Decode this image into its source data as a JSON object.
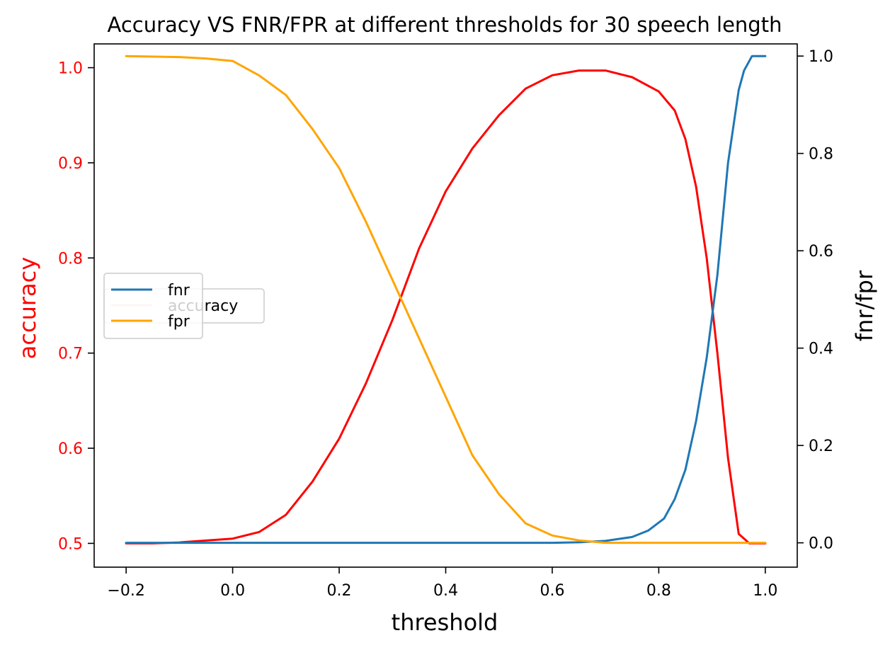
{
  "chart_data": {
    "type": "line",
    "title": "Accuracy VS FNR/FPR at different thresholds for 30 speech length",
    "xlabel": "threshold",
    "ylabel_left": "accuracy",
    "ylabel_right": "fnr/fpr",
    "xlim": [
      -0.26,
      1.06
    ],
    "ylim_left": [
      0.475,
      1.025
    ],
    "ylim_right": [
      -0.05,
      1.025
    ],
    "x_ticks": [
      -0.2,
      0.0,
      0.2,
      0.4,
      0.6,
      0.8,
      1.0
    ],
    "x_tick_labels": [
      "−0.2",
      "0.0",
      "0.2",
      "0.4",
      "0.6",
      "0.8",
      "1.0"
    ],
    "y_left_ticks": [
      0.5,
      0.6,
      0.7,
      0.8,
      0.9,
      1.0
    ],
    "y_left_tick_labels": [
      "0.5",
      "0.6",
      "0.7",
      "0.8",
      "0.9",
      "1.0"
    ],
    "y_right_ticks": [
      0.0,
      0.2,
      0.4,
      0.6,
      0.8,
      1.0
    ],
    "y_right_tick_labels": [
      "0.0",
      "0.2",
      "0.4",
      "0.6",
      "0.8",
      "1.0"
    ],
    "grid": false,
    "legend_placement": "center-left",
    "colors": {
      "accuracy": "#ff0000",
      "fnr": "#1f77b4",
      "fpr": "#ffa500",
      "accuracy_legend": "#ffcccc"
    },
    "legend_right": [
      {
        "name": "fnr",
        "color": "#1f77b4"
      },
      {
        "name": "fpr",
        "color": "#ffa500"
      }
    ],
    "legend_left": [
      {
        "name": "accuracy",
        "color": "#ffcccc"
      }
    ],
    "series": [
      {
        "name": "accuracy",
        "axis": "left",
        "color": "#ff0000",
        "x": [
          -0.2,
          -0.15,
          -0.1,
          -0.05,
          0.0,
          0.05,
          0.1,
          0.15,
          0.2,
          0.25,
          0.3,
          0.35,
          0.4,
          0.45,
          0.5,
          0.55,
          0.6,
          0.65,
          0.7,
          0.75,
          0.8,
          0.83,
          0.85,
          0.87,
          0.89,
          0.91,
          0.93,
          0.95,
          0.97,
          1.0
        ],
        "y": [
          0.5,
          0.5,
          0.501,
          0.503,
          0.505,
          0.512,
          0.53,
          0.565,
          0.61,
          0.668,
          0.735,
          0.81,
          0.87,
          0.915,
          0.95,
          0.978,
          0.992,
          0.997,
          0.997,
          0.99,
          0.975,
          0.955,
          0.925,
          0.875,
          0.8,
          0.7,
          0.59,
          0.51,
          0.5,
          0.5
        ]
      },
      {
        "name": "fnr",
        "axis": "right",
        "color": "#1f77b4",
        "x": [
          -0.2,
          0.0,
          0.2,
          0.4,
          0.6,
          0.65,
          0.7,
          0.75,
          0.78,
          0.81,
          0.83,
          0.85,
          0.87,
          0.89,
          0.91,
          0.93,
          0.95,
          0.96,
          0.975,
          1.0
        ],
        "y": [
          0.0,
          0.0,
          0.0,
          0.0,
          0.0,
          0.001,
          0.004,
          0.012,
          0.025,
          0.05,
          0.09,
          0.15,
          0.25,
          0.38,
          0.55,
          0.78,
          0.93,
          0.97,
          1.0,
          1.0
        ]
      },
      {
        "name": "fpr",
        "axis": "right",
        "color": "#ffa500",
        "x": [
          -0.2,
          -0.1,
          -0.05,
          0.0,
          0.05,
          0.1,
          0.15,
          0.2,
          0.25,
          0.3,
          0.35,
          0.4,
          0.45,
          0.5,
          0.55,
          0.6,
          0.65,
          0.7,
          0.8,
          0.9,
          1.0
        ],
        "y": [
          1.0,
          0.998,
          0.995,
          0.99,
          0.96,
          0.92,
          0.85,
          0.77,
          0.66,
          0.54,
          0.42,
          0.3,
          0.18,
          0.1,
          0.04,
          0.015,
          0.005,
          0.0,
          0.0,
          0.0,
          0.0
        ]
      }
    ]
  }
}
